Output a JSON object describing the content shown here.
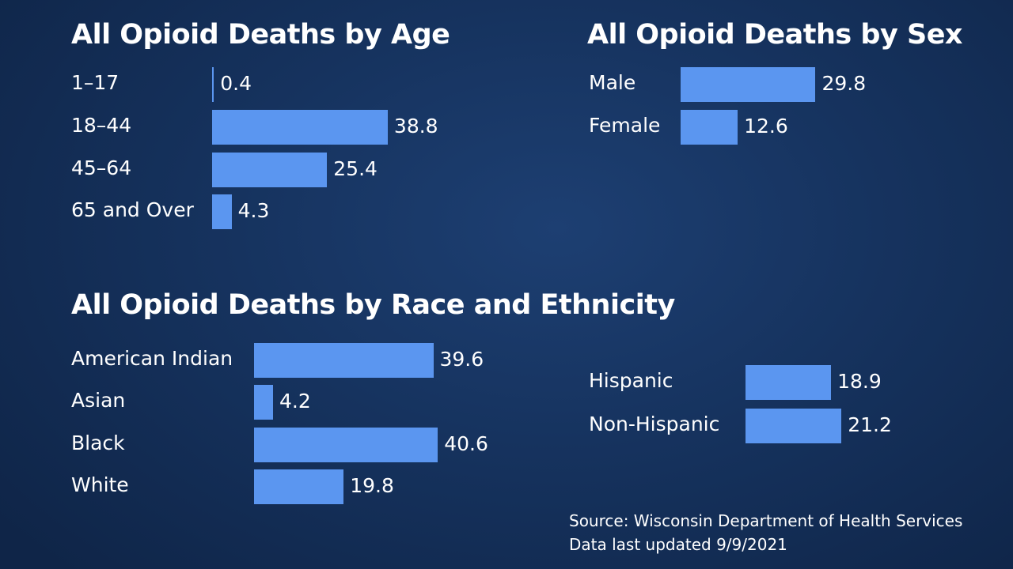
{
  "chart_data": [
    {
      "type": "bar",
      "orientation": "horizontal",
      "title": "All Opioid Deaths by Age",
      "categories": [
        "1–17",
        "18–44",
        "45–64",
        "65 and Over"
      ],
      "values": [
        0.4,
        38.8,
        25.4,
        4.3
      ],
      "value_labels": [
        "0.4",
        "38.8",
        "25.4",
        "4.3"
      ],
      "bar_color": "#5b96f0"
    },
    {
      "type": "bar",
      "orientation": "horizontal",
      "title": "All Opioid Deaths by Sex",
      "categories": [
        "Male",
        "Female"
      ],
      "values": [
        29.8,
        12.6
      ],
      "value_labels": [
        "29.8",
        "12.6"
      ],
      "bar_color": "#5b96f0"
    },
    {
      "type": "bar",
      "orientation": "horizontal",
      "title": "All Opioid Deaths by Race and Ethnicity",
      "categories": [
        "American Indian",
        "Asian",
        "Black",
        "White"
      ],
      "values": [
        39.6,
        4.2,
        40.6,
        19.8
      ],
      "value_labels": [
        "39.6",
        "4.2",
        "40.6",
        "19.8"
      ],
      "bar_color": "#5b96f0"
    },
    {
      "type": "bar",
      "orientation": "horizontal",
      "title": "",
      "categories": [
        "Hispanic",
        "Non-Hispanic"
      ],
      "values": [
        18.9,
        21.2
      ],
      "value_labels": [
        "18.9",
        "21.2"
      ],
      "bar_color": "#5b96f0"
    }
  ],
  "source": {
    "line1": "Source: Wisconsin Department of Health Services",
    "line2": "Data last updated 9/9/2021"
  },
  "colors": {
    "background": "#16335f",
    "bar": "#5b96f0",
    "text": "#ffffff"
  }
}
